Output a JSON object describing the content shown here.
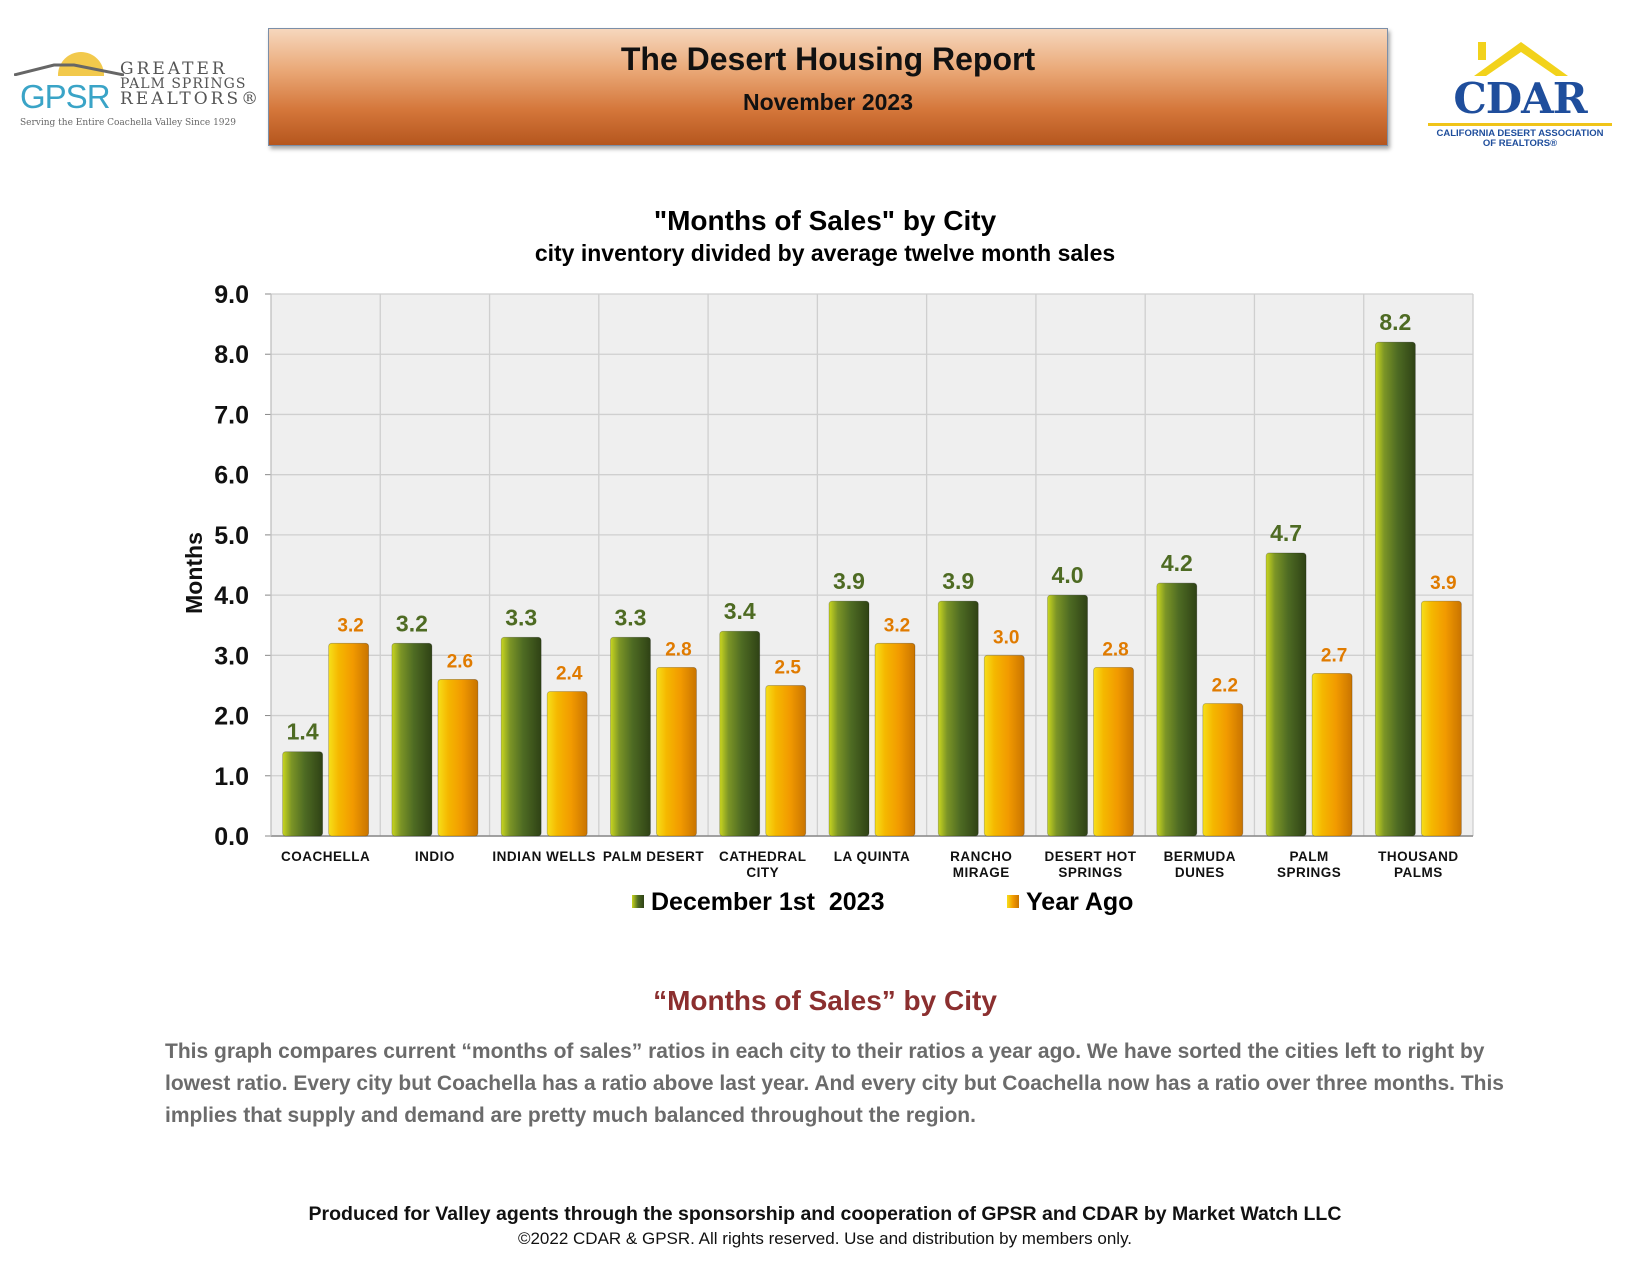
{
  "header": {
    "title": "The Desert Housing Report",
    "subtitle": "November 2023"
  },
  "logos": {
    "gpsr": {
      "abbr": "GPSR",
      "line1": "GREATER",
      "line2": "PALM SPRINGS",
      "line3": "REALTORS®",
      "tagline": "Serving the Entire Coachella Valley Since 1929"
    },
    "cdar": {
      "name": "CDAR",
      "org_line1": "CALIFORNIA DESERT ASSOCIATION",
      "org_line2": "OF REALTORS®"
    }
  },
  "chart_data": {
    "type": "bar",
    "title": "\"Months of Sales\" by City",
    "subtitle": "city inventory divided by average twelve month sales",
    "xlabel": "",
    "ylabel": "Months",
    "ylim": [
      0,
      9
    ],
    "yticks": [
      "0.0",
      "1.0",
      "2.0",
      "3.0",
      "4.0",
      "5.0",
      "6.0",
      "7.0",
      "8.0",
      "9.0"
    ],
    "grid": true,
    "legend_position": "bottom",
    "categories": [
      [
        "COACHELLA"
      ],
      [
        "INDIO"
      ],
      [
        "INDIAN WELLS"
      ],
      [
        "PALM DESERT"
      ],
      [
        "CATHEDRAL",
        "CITY"
      ],
      [
        "LA QUINTA"
      ],
      [
        "RANCHO",
        "MIRAGE"
      ],
      [
        "DESERT HOT",
        "SPRINGS"
      ],
      [
        "BERMUDA",
        "DUNES"
      ],
      [
        "PALM",
        "SPRINGS"
      ],
      [
        "THOUSAND",
        "PALMS"
      ]
    ],
    "series": [
      {
        "name": "December 1st  2023",
        "color": "#4e6b23",
        "values": [
          1.4,
          3.2,
          3.3,
          3.3,
          3.4,
          3.9,
          3.9,
          4.0,
          4.2,
          4.7,
          8.2
        ],
        "labels": [
          "1.4",
          "3.2",
          "3.3",
          "3.3",
          "3.4",
          "3.9",
          "3.9",
          "4.0",
          "4.2",
          "4.7",
          "8.2"
        ]
      },
      {
        "name": "Year Ago",
        "color": "#f0a000",
        "values": [
          3.2,
          2.6,
          2.4,
          2.8,
          2.5,
          3.2,
          3.0,
          2.8,
          2.2,
          2.7,
          3.9
        ],
        "labels": [
          "3.2",
          "2.6",
          "2.4",
          "2.8",
          "2.5",
          "3.2",
          "3.0",
          "2.8",
          "2.2",
          "2.7",
          "3.9"
        ]
      }
    ]
  },
  "description": {
    "title": "“Months of Sales” by City",
    "body": "This graph compares current “months of sales” ratios in each city to their ratios a year ago. We have sorted the cities left to right by lowest ratio. Every city but Coachella has a ratio above last year. And every city but Coachella now has a ratio over three months. This implies that supply and demand are pretty much balanced throughout the region."
  },
  "footer": {
    "line1": "Produced for Valley agents through the sponsorship and cooperation of GPSR and CDAR by Market Watch LLC",
    "line2": "©2022 CDAR & GPSR.  All rights reserved.  Use and distribution by members only."
  }
}
